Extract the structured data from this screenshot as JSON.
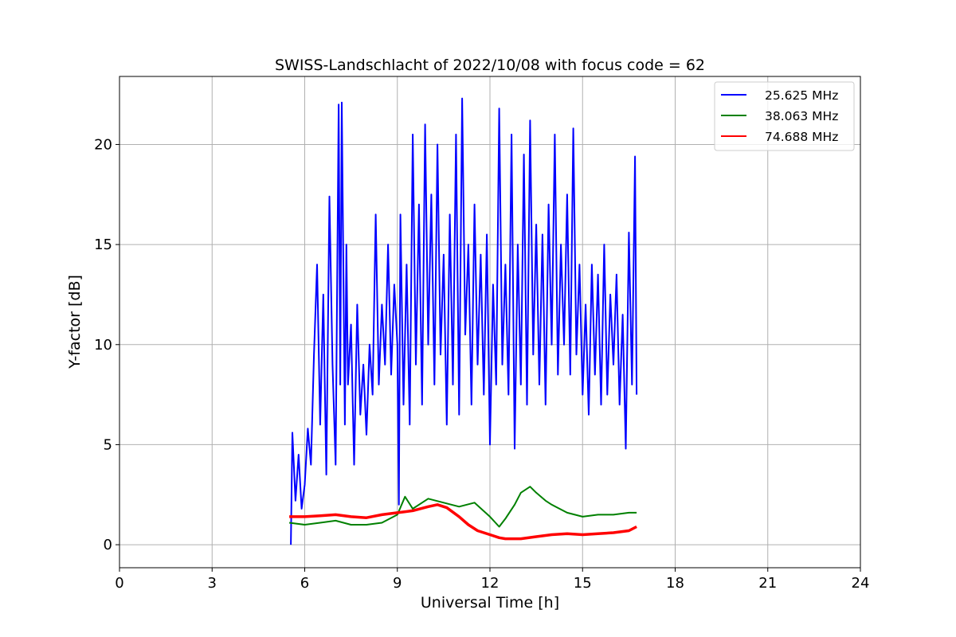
{
  "chart_data": {
    "type": "line",
    "title": "SWISS-Landschlacht of 2022/10/08 with focus code = 62",
    "xlabel": "Universal Time [h]",
    "ylabel": "Y-factor [dB]",
    "xlim": [
      0,
      24
    ],
    "ylim": [
      -1.15,
      23.4
    ],
    "xticks": [
      "0",
      "3",
      "6",
      "9",
      "12",
      "15",
      "18",
      "21",
      "24"
    ],
    "yticks": [
      "0",
      "5",
      "10",
      "15",
      "20"
    ],
    "grid": true,
    "legend_position": "top-right",
    "series": [
      {
        "name": "25.625 MHz",
        "color": "#0000ff",
        "x": [
          5.55,
          5.6,
          5.7,
          5.8,
          5.9,
          6.0,
          6.1,
          6.2,
          6.3,
          6.4,
          6.5,
          6.6,
          6.7,
          6.8,
          6.9,
          7.0,
          7.1,
          7.15,
          7.2,
          7.3,
          7.35,
          7.4,
          7.5,
          7.6,
          7.7,
          7.8,
          7.9,
          8.0,
          8.1,
          8.2,
          8.3,
          8.4,
          8.5,
          8.6,
          8.7,
          8.8,
          8.9,
          9.0,
          9.05,
          9.1,
          9.2,
          9.3,
          9.4,
          9.5,
          9.6,
          9.7,
          9.8,
          9.9,
          10.0,
          10.1,
          10.2,
          10.3,
          10.4,
          10.5,
          10.6,
          10.7,
          10.8,
          10.9,
          11.0,
          11.1,
          11.2,
          11.3,
          11.4,
          11.5,
          11.6,
          11.7,
          11.8,
          11.9,
          12.0,
          12.1,
          12.2,
          12.3,
          12.4,
          12.5,
          12.6,
          12.7,
          12.8,
          12.9,
          13.0,
          13.1,
          13.2,
          13.3,
          13.4,
          13.5,
          13.6,
          13.7,
          13.8,
          13.9,
          14.0,
          14.1,
          14.2,
          14.3,
          14.4,
          14.5,
          14.6,
          14.7,
          14.8,
          14.9,
          15.0,
          15.1,
          15.2,
          15.3,
          15.4,
          15.5,
          15.6,
          15.7,
          15.8,
          15.9,
          16.0,
          16.1,
          16.2,
          16.3,
          16.4,
          16.5,
          16.6,
          16.7,
          16.75
        ],
        "y": [
          0.0,
          5.6,
          2.2,
          4.5,
          1.8,
          3.0,
          5.8,
          4.0,
          9.5,
          14.0,
          6.0,
          12.5,
          3.5,
          17.4,
          9.0,
          4.0,
          22.0,
          8.0,
          22.1,
          6.0,
          15.0,
          8.0,
          11.0,
          4.0,
          12.0,
          6.5,
          9.0,
          5.5,
          10.0,
          7.5,
          16.5,
          8.0,
          12.0,
          9.0,
          15.0,
          8.5,
          13.0,
          10.0,
          2.0,
          16.5,
          7.0,
          14.0,
          6.0,
          20.5,
          9.0,
          17.0,
          7.0,
          21.0,
          10.0,
          17.5,
          8.0,
          20.0,
          9.5,
          14.5,
          6.0,
          16.5,
          8.0,
          20.5,
          6.5,
          22.3,
          10.5,
          15.0,
          7.0,
          17.0,
          9.0,
          14.5,
          7.5,
          15.5,
          5.0,
          13.0,
          8.0,
          21.8,
          9.0,
          14.0,
          7.5,
          20.5,
          4.8,
          15.0,
          8.0,
          19.5,
          7.0,
          21.2,
          9.5,
          16.0,
          8.0,
          15.5,
          7.0,
          17.0,
          10.0,
          20.5,
          8.5,
          15.0,
          10.0,
          17.5,
          8.5,
          20.8,
          9.5,
          14.0,
          7.5,
          12.0,
          6.5,
          14.0,
          8.5,
          13.5,
          7.0,
          15.0,
          7.5,
          12.5,
          9.0,
          13.5,
          7.0,
          11.5,
          4.8,
          15.6,
          8.0,
          19.4,
          7.5
        ]
      },
      {
        "name": "38.063 MHz",
        "color": "#008000",
        "x": [
          5.5,
          6.0,
          6.5,
          7.0,
          7.5,
          8.0,
          8.5,
          9.0,
          9.25,
          9.5,
          10.0,
          10.5,
          11.0,
          11.5,
          12.0,
          12.3,
          12.5,
          12.8,
          13.0,
          13.3,
          13.5,
          13.8,
          14.0,
          14.5,
          15.0,
          15.5,
          16.0,
          16.5,
          16.75
        ],
        "y": [
          1.1,
          1.0,
          1.1,
          1.2,
          1.0,
          1.0,
          1.1,
          1.5,
          2.4,
          1.8,
          2.3,
          2.1,
          1.9,
          2.1,
          1.4,
          0.9,
          1.3,
          2.0,
          2.6,
          2.9,
          2.6,
          2.2,
          2.0,
          1.6,
          1.4,
          1.5,
          1.5,
          1.6,
          1.6
        ]
      },
      {
        "name": "74.688 MHz",
        "color": "#ff0000",
        "x": [
          5.5,
          6.0,
          6.5,
          7.0,
          7.5,
          8.0,
          8.5,
          9.0,
          9.5,
          10.0,
          10.3,
          10.6,
          11.0,
          11.3,
          11.6,
          12.0,
          12.3,
          12.5,
          13.0,
          13.5,
          14.0,
          14.5,
          15.0,
          15.5,
          16.0,
          16.5,
          16.75
        ],
        "y": [
          1.4,
          1.4,
          1.45,
          1.5,
          1.4,
          1.35,
          1.5,
          1.6,
          1.7,
          1.9,
          2.0,
          1.85,
          1.4,
          1.0,
          0.7,
          0.5,
          0.35,
          0.3,
          0.3,
          0.4,
          0.5,
          0.55,
          0.5,
          0.55,
          0.6,
          0.7,
          0.9
        ]
      }
    ]
  }
}
